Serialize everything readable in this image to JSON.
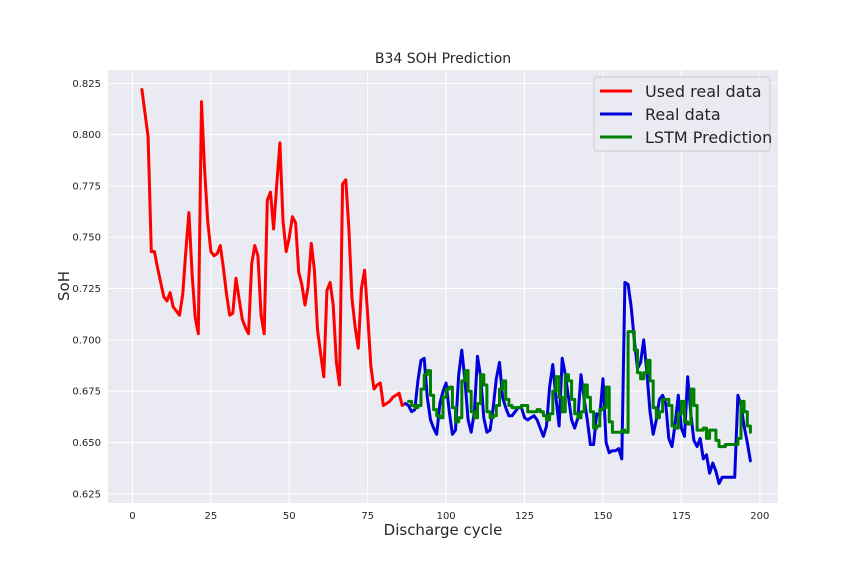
{
  "chart_data": {
    "type": "line",
    "title": "B34 SOH Prediction",
    "xlabel": "Discharge cycle",
    "ylabel": "SoH",
    "xlim": [
      -7.8,
      205.8
    ],
    "ylim": [
      0.6205,
      0.8315
    ],
    "x_ticks": [
      0,
      25,
      50,
      75,
      100,
      125,
      150,
      175,
      200
    ],
    "x_tick_labels": [
      "0",
      "25",
      "50",
      "75",
      "100",
      "125",
      "150",
      "175",
      "200"
    ],
    "y_ticks": [
      0.625,
      0.65,
      0.675,
      0.7,
      0.725,
      0.75,
      0.775,
      0.8,
      0.825
    ],
    "y_tick_labels": [
      "0.625",
      "0.650",
      "0.675",
      "0.700",
      "0.725",
      "0.750",
      "0.775",
      "0.800",
      "0.825"
    ],
    "grid": true,
    "legend": "top-right",
    "series": [
      {
        "name": "Used real data",
        "color": "#ff0000",
        "x": [
          3,
          5,
          6,
          7,
          8,
          9,
          10,
          11,
          12,
          13,
          14,
          15,
          16,
          17,
          18,
          19,
          20,
          21,
          22,
          23,
          24,
          25,
          26,
          27,
          28,
          29,
          30,
          31,
          32,
          33,
          34,
          35,
          36,
          37,
          38,
          39,
          40,
          41,
          42,
          43,
          44,
          45,
          46,
          47,
          48,
          49,
          50,
          51,
          52,
          53,
          54,
          55,
          56,
          57,
          58,
          59,
          60,
          61,
          62,
          63,
          64,
          65,
          66,
          67,
          68,
          69,
          70,
          71,
          72,
          73,
          74,
          75,
          76,
          77,
          78,
          79,
          80,
          81,
          82,
          83,
          84,
          85,
          86,
          87
        ],
        "y": [
          0.822,
          0.799,
          0.743,
          0.743,
          0.735,
          0.728,
          0.721,
          0.719,
          0.723,
          0.716,
          0.714,
          0.712,
          0.722,
          0.743,
          0.762,
          0.732,
          0.711,
          0.703,
          0.816,
          0.783,
          0.758,
          0.743,
          0.741,
          0.742,
          0.746,
          0.735,
          0.722,
          0.712,
          0.713,
          0.73,
          0.72,
          0.71,
          0.706,
          0.703,
          0.737,
          0.746,
          0.741,
          0.712,
          0.703,
          0.768,
          0.772,
          0.754,
          0.776,
          0.796,
          0.758,
          0.743,
          0.75,
          0.76,
          0.757,
          0.733,
          0.727,
          0.717,
          0.726,
          0.747,
          0.734,
          0.705,
          0.693,
          0.682,
          0.724,
          0.728,
          0.717,
          0.689,
          0.678,
          0.776,
          0.778,
          0.754,
          0.72,
          0.706,
          0.696,
          0.725,
          0.734,
          0.712,
          0.687,
          0.676,
          0.678,
          0.679,
          0.668,
          0.669,
          0.67,
          0.672,
          0.673,
          0.674,
          0.668,
          0.669
        ]
      },
      {
        "name": "Real data",
        "color": "#0000dd",
        "x": [
          87,
          88,
          89,
          90,
          91,
          92,
          93,
          94,
          95,
          96,
          97,
          98,
          99,
          100,
          101,
          102,
          103,
          104,
          105,
          106,
          107,
          108,
          109,
          110,
          111,
          112,
          113,
          114,
          115,
          116,
          117,
          118,
          119,
          120,
          121,
          122,
          123,
          124,
          125,
          126,
          127,
          128,
          129,
          130,
          131,
          132,
          133,
          134,
          135,
          136,
          137,
          138,
          139,
          140,
          141,
          142,
          143,
          144,
          145,
          146,
          147,
          148,
          149,
          150,
          151,
          152,
          153,
          154,
          155,
          156,
          157,
          158,
          159,
          160,
          161,
          162,
          163,
          164,
          165,
          166,
          167,
          168,
          169,
          170,
          171,
          172,
          173,
          174,
          175,
          176,
          177,
          178,
          179,
          180,
          181,
          182,
          183,
          184,
          185,
          186,
          187,
          188,
          189,
          190,
          191,
          192,
          193,
          194,
          195,
          196,
          197
        ],
        "y": [
          0.669,
          0.668,
          0.665,
          0.666,
          0.68,
          0.69,
          0.691,
          0.672,
          0.661,
          0.657,
          0.654,
          0.669,
          0.675,
          0.679,
          0.665,
          0.654,
          0.656,
          0.683,
          0.695,
          0.68,
          0.661,
          0.655,
          0.665,
          0.692,
          0.682,
          0.662,
          0.655,
          0.656,
          0.667,
          0.681,
          0.689,
          0.672,
          0.667,
          0.663,
          0.663,
          0.665,
          0.667,
          0.667,
          0.662,
          0.661,
          0.662,
          0.663,
          0.661,
          0.657,
          0.653,
          0.658,
          0.677,
          0.688,
          0.672,
          0.658,
          0.691,
          0.683,
          0.672,
          0.661,
          0.657,
          0.662,
          0.683,
          0.671,
          0.661,
          0.649,
          0.649,
          0.664,
          0.663,
          0.681,
          0.65,
          0.645,
          0.646,
          0.646,
          0.647,
          0.642,
          0.728,
          0.727,
          0.716,
          0.7,
          0.686,
          0.689,
          0.7,
          0.684,
          0.665,
          0.654,
          0.661,
          0.671,
          0.673,
          0.669,
          0.652,
          0.648,
          0.659,
          0.673,
          0.657,
          0.653,
          0.682,
          0.664,
          0.651,
          0.648,
          0.652,
          0.642,
          0.644,
          0.635,
          0.64,
          0.636,
          0.63,
          0.633,
          0.633,
          0.633,
          0.633,
          0.633,
          0.673,
          0.668,
          0.658,
          0.65,
          0.641
        ]
      },
      {
        "name": "LSTM Prediction",
        "color": "#008000",
        "x": [
          88,
          89,
          90,
          91,
          92,
          93,
          94,
          95,
          96,
          97,
          98,
          99,
          100,
          101,
          102,
          103,
          104,
          105,
          106,
          107,
          108,
          109,
          110,
          111,
          112,
          113,
          114,
          115,
          116,
          117,
          118,
          119,
          120,
          121,
          122,
          123,
          124,
          125,
          126,
          127,
          128,
          129,
          130,
          131,
          132,
          133,
          134,
          135,
          136,
          137,
          138,
          139,
          140,
          141,
          142,
          143,
          144,
          145,
          146,
          147,
          148,
          149,
          150,
          151,
          152,
          153,
          154,
          155,
          156,
          157,
          158,
          159,
          160,
          161,
          162,
          163,
          164,
          165,
          166,
          167,
          168,
          169,
          170,
          171,
          172,
          173,
          174,
          175,
          176,
          177,
          178,
          179,
          180,
          181,
          182,
          183,
          184,
          185,
          186,
          187,
          188,
          189,
          190,
          191,
          192,
          193,
          194,
          195,
          196,
          197
        ],
        "y": [
          0.67,
          0.668,
          0.667,
          0.668,
          0.676,
          0.683,
          0.685,
          0.673,
          0.666,
          0.663,
          0.662,
          0.672,
          0.676,
          0.677,
          0.667,
          0.66,
          0.662,
          0.68,
          0.685,
          0.675,
          0.665,
          0.662,
          0.669,
          0.683,
          0.678,
          0.665,
          0.662,
          0.663,
          0.668,
          0.676,
          0.68,
          0.671,
          0.668,
          0.667,
          0.667,
          0.667,
          0.668,
          0.668,
          0.665,
          0.665,
          0.665,
          0.666,
          0.665,
          0.663,
          0.661,
          0.664,
          0.675,
          0.682,
          0.672,
          0.665,
          0.683,
          0.68,
          0.671,
          0.664,
          0.662,
          0.665,
          0.678,
          0.672,
          0.665,
          0.657,
          0.658,
          0.666,
          0.667,
          0.677,
          0.66,
          0.655,
          0.655,
          0.655,
          0.656,
          0.655,
          0.704,
          0.704,
          0.695,
          0.684,
          0.681,
          0.684,
          0.69,
          0.68,
          0.667,
          0.662,
          0.665,
          0.671,
          0.671,
          0.668,
          0.658,
          0.657,
          0.664,
          0.67,
          0.66,
          0.659,
          0.676,
          0.668,
          0.656,
          0.656,
          0.657,
          0.652,
          0.656,
          0.656,
          0.651,
          0.648,
          0.648,
          0.649,
          0.649,
          0.649,
          0.649,
          0.652,
          0.67,
          0.665,
          0.658,
          0.655
        ]
      }
    ]
  }
}
